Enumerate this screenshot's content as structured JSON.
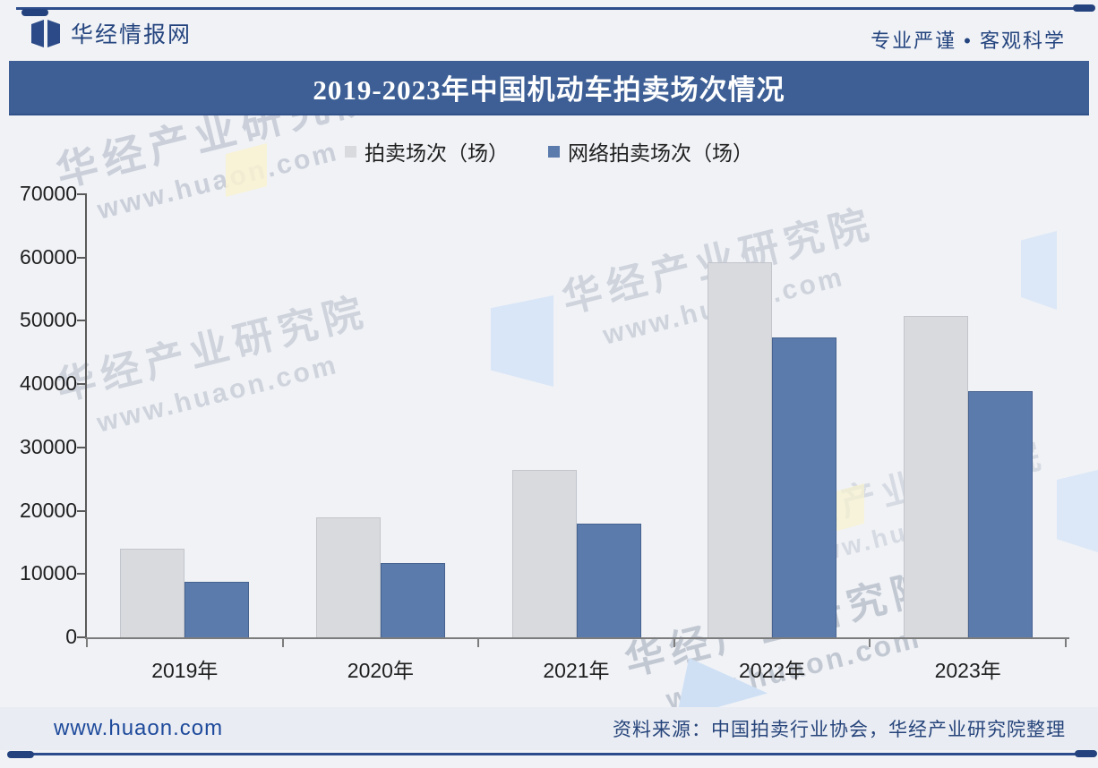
{
  "header": {
    "brand": "华经情报网",
    "slogan": "专业严谨 • 客观科学"
  },
  "title": "2019-2023年中国机动车拍卖场次情况",
  "chart_data": {
    "type": "bar",
    "title": "2019-2023年中国机动车拍卖场次情况",
    "categories": [
      "2019年",
      "2020年",
      "2021年",
      "2022年",
      "2023年"
    ],
    "series": [
      {
        "name": "拍卖场次（场）",
        "color": "#d9dade",
        "values": [
          14000,
          19000,
          26400,
          59300,
          50800
        ]
      },
      {
        "name": "网络拍卖场次（场）",
        "color": "#5b7bad",
        "values": [
          8700,
          11800,
          18000,
          47400,
          38900
        ]
      }
    ],
    "xlabel": "",
    "ylabel": "",
    "ylim": [
      0,
      70000
    ],
    "ytick_step": 10000,
    "yticks": [
      "0",
      "10000",
      "20000",
      "30000",
      "40000",
      "50000",
      "60000",
      "70000"
    ],
    "grid": false,
    "legend_position": "top-center"
  },
  "watermarks": {
    "brand_text": "华经产业研究院",
    "url_text": "www.huaon.com"
  },
  "footer": {
    "site": "www.huaon.com",
    "source": "资料来源：中国拍卖行业协会，华经产业研究院整理"
  },
  "colors": {
    "title_bar": "#3d5f95",
    "brand_navy": "#24437e",
    "bar_gray": "#d9dade",
    "bar_blue": "#5b7bad",
    "footer_band": "#e9ecf3"
  }
}
